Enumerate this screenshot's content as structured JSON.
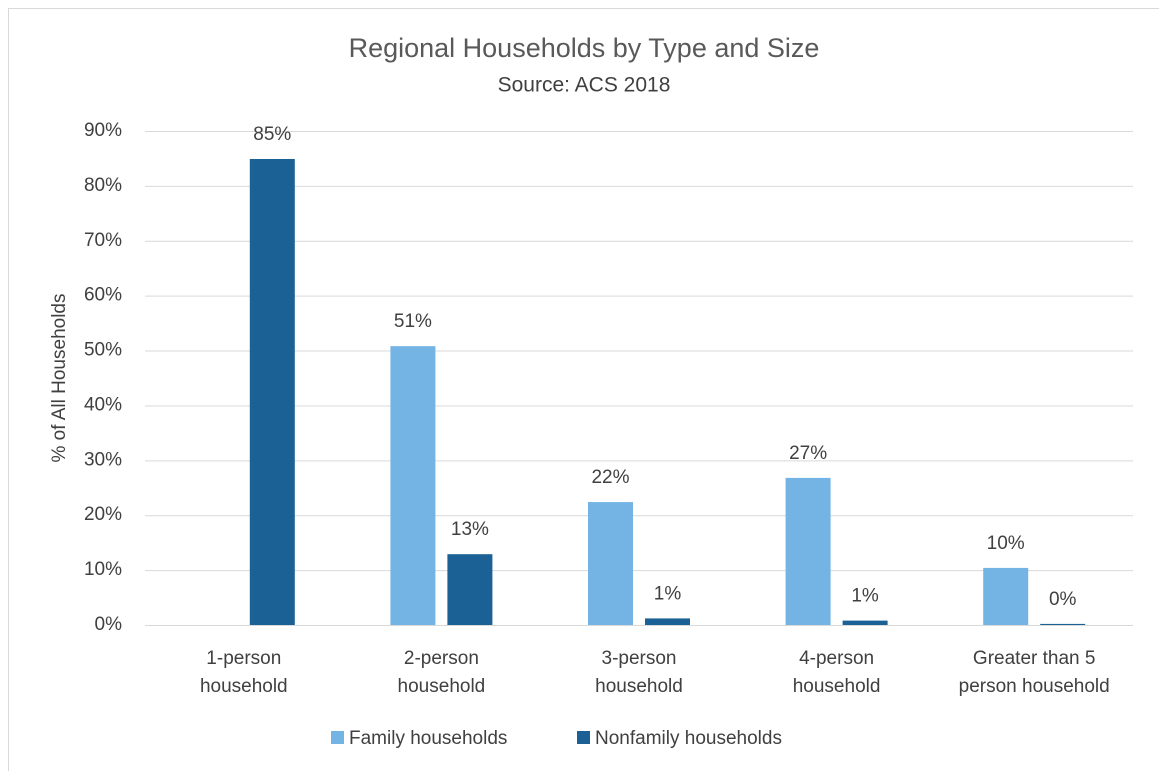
{
  "chart_data": {
    "type": "bar",
    "title": "Regional Households by Type and Size",
    "subtitle": "Source: ACS 2018",
    "y_label": "% of All Households",
    "categories": [
      [
        "1-person",
        "household"
      ],
      [
        "2-person",
        "household"
      ],
      [
        "3-person",
        "household"
      ],
      [
        "4-person",
        "household"
      ],
      [
        "Greater than 5",
        "person household"
      ]
    ],
    "series": [
      {
        "name": "Family households",
        "color": "#74b4e4",
        "values": [
          null,
          50.8,
          22.4,
          26.8,
          10.4
        ],
        "value_labels": [
          null,
          "51%",
          "22%",
          "27%",
          "10%"
        ]
      },
      {
        "name": "Nonfamily households",
        "color": "#1b6195",
        "values": [
          84.9,
          12.9,
          1.2,
          0.8,
          0.2
        ],
        "value_labels": [
          "85%",
          "13%",
          "1%",
          "1%",
          "0%"
        ]
      }
    ],
    "ylim": [
      0,
      90
    ],
    "yticks": [
      {
        "value": 0,
        "label": "0%"
      },
      {
        "value": 10,
        "label": "10%"
      },
      {
        "value": 20,
        "label": "20%"
      },
      {
        "value": 30,
        "label": "30%"
      },
      {
        "value": 40,
        "label": "40%"
      },
      {
        "value": 50,
        "label": "50%"
      },
      {
        "value": 60,
        "label": "60%"
      },
      {
        "value": 70,
        "label": "70%"
      },
      {
        "value": 80,
        "label": "80%"
      },
      {
        "value": 90,
        "label": "90%"
      }
    ],
    "grid": true,
    "legend": "bottom"
  }
}
